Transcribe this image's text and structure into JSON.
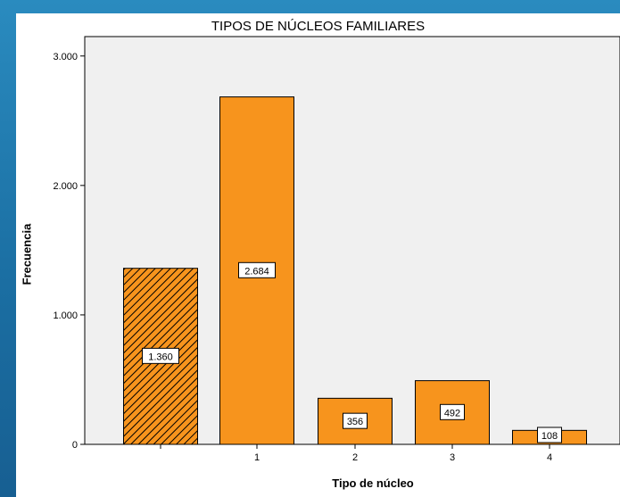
{
  "chart_data": {
    "type": "bar",
    "title": "TIPOS DE NÚCLEOS FAMILIARES",
    "xlabel": "Tipo de núcleo",
    "ylabel": "Frecuencia",
    "categories": [
      "",
      "1",
      "2",
      "3",
      "4"
    ],
    "values": [
      1360,
      2684,
      356,
      492,
      108
    ],
    "data_labels": [
      "1.360",
      "2.684",
      "356",
      "492",
      "108"
    ],
    "y_ticks": [
      0,
      1000,
      2000,
      3000
    ],
    "y_tick_labels": [
      "0",
      "1.000",
      "2.000",
      "3.000"
    ],
    "ylim": [
      0,
      3150
    ],
    "grid": false,
    "colors": {
      "bar": "#f7941d",
      "bar_stroke": "#000000",
      "hatch_bar_fill": "#f7941d",
      "hatch_line": "#000000",
      "plot_bg": "#f0f0f0"
    },
    "hatched_category_index": 0
  }
}
